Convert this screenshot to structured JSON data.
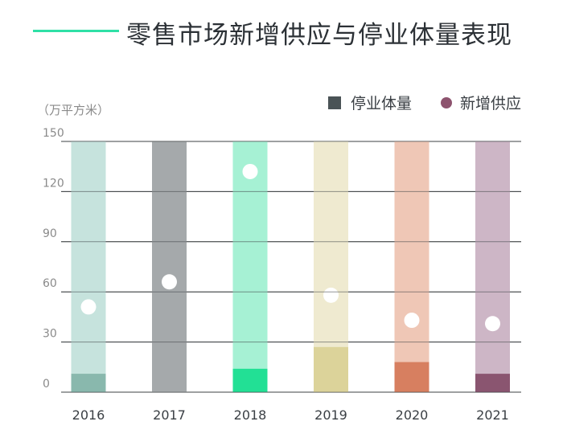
{
  "header": {
    "title": "零售市场新增供应与停业体量表现",
    "unit": "（万平方米）",
    "accent_color": "#2fe0a6"
  },
  "legend": {
    "closure_label": "停业体量",
    "supply_label": "新增供应"
  },
  "chart_data": {
    "type": "bar",
    "title": "零售市场新增供应与停业体量表现",
    "ylabel": "（万平方米）",
    "ylim": [
      0,
      150
    ],
    "yticks": [
      0,
      30,
      60,
      90,
      120,
      150
    ],
    "categories": [
      "2016",
      "2017",
      "2018",
      "2019",
      "2020",
      "2021"
    ],
    "series": [
      {
        "name": "停业体量",
        "kind": "bar",
        "values": [
          11,
          150,
          14,
          27,
          18,
          11
        ]
      },
      {
        "name": "新增供应",
        "kind": "point",
        "values": [
          51,
          66,
          132,
          58,
          43,
          41
        ]
      }
    ],
    "background_colors": [
      "#c6e3dd",
      "#a5a9ab",
      "#a6f1d4",
      "#efead0",
      "#efc7b6",
      "#cdb6c6"
    ],
    "bar_colors": [
      "#89b8ad",
      "#a5a9ab",
      "#22e095",
      "#dcd39a",
      "#d77f60",
      "#8a5570"
    ]
  }
}
